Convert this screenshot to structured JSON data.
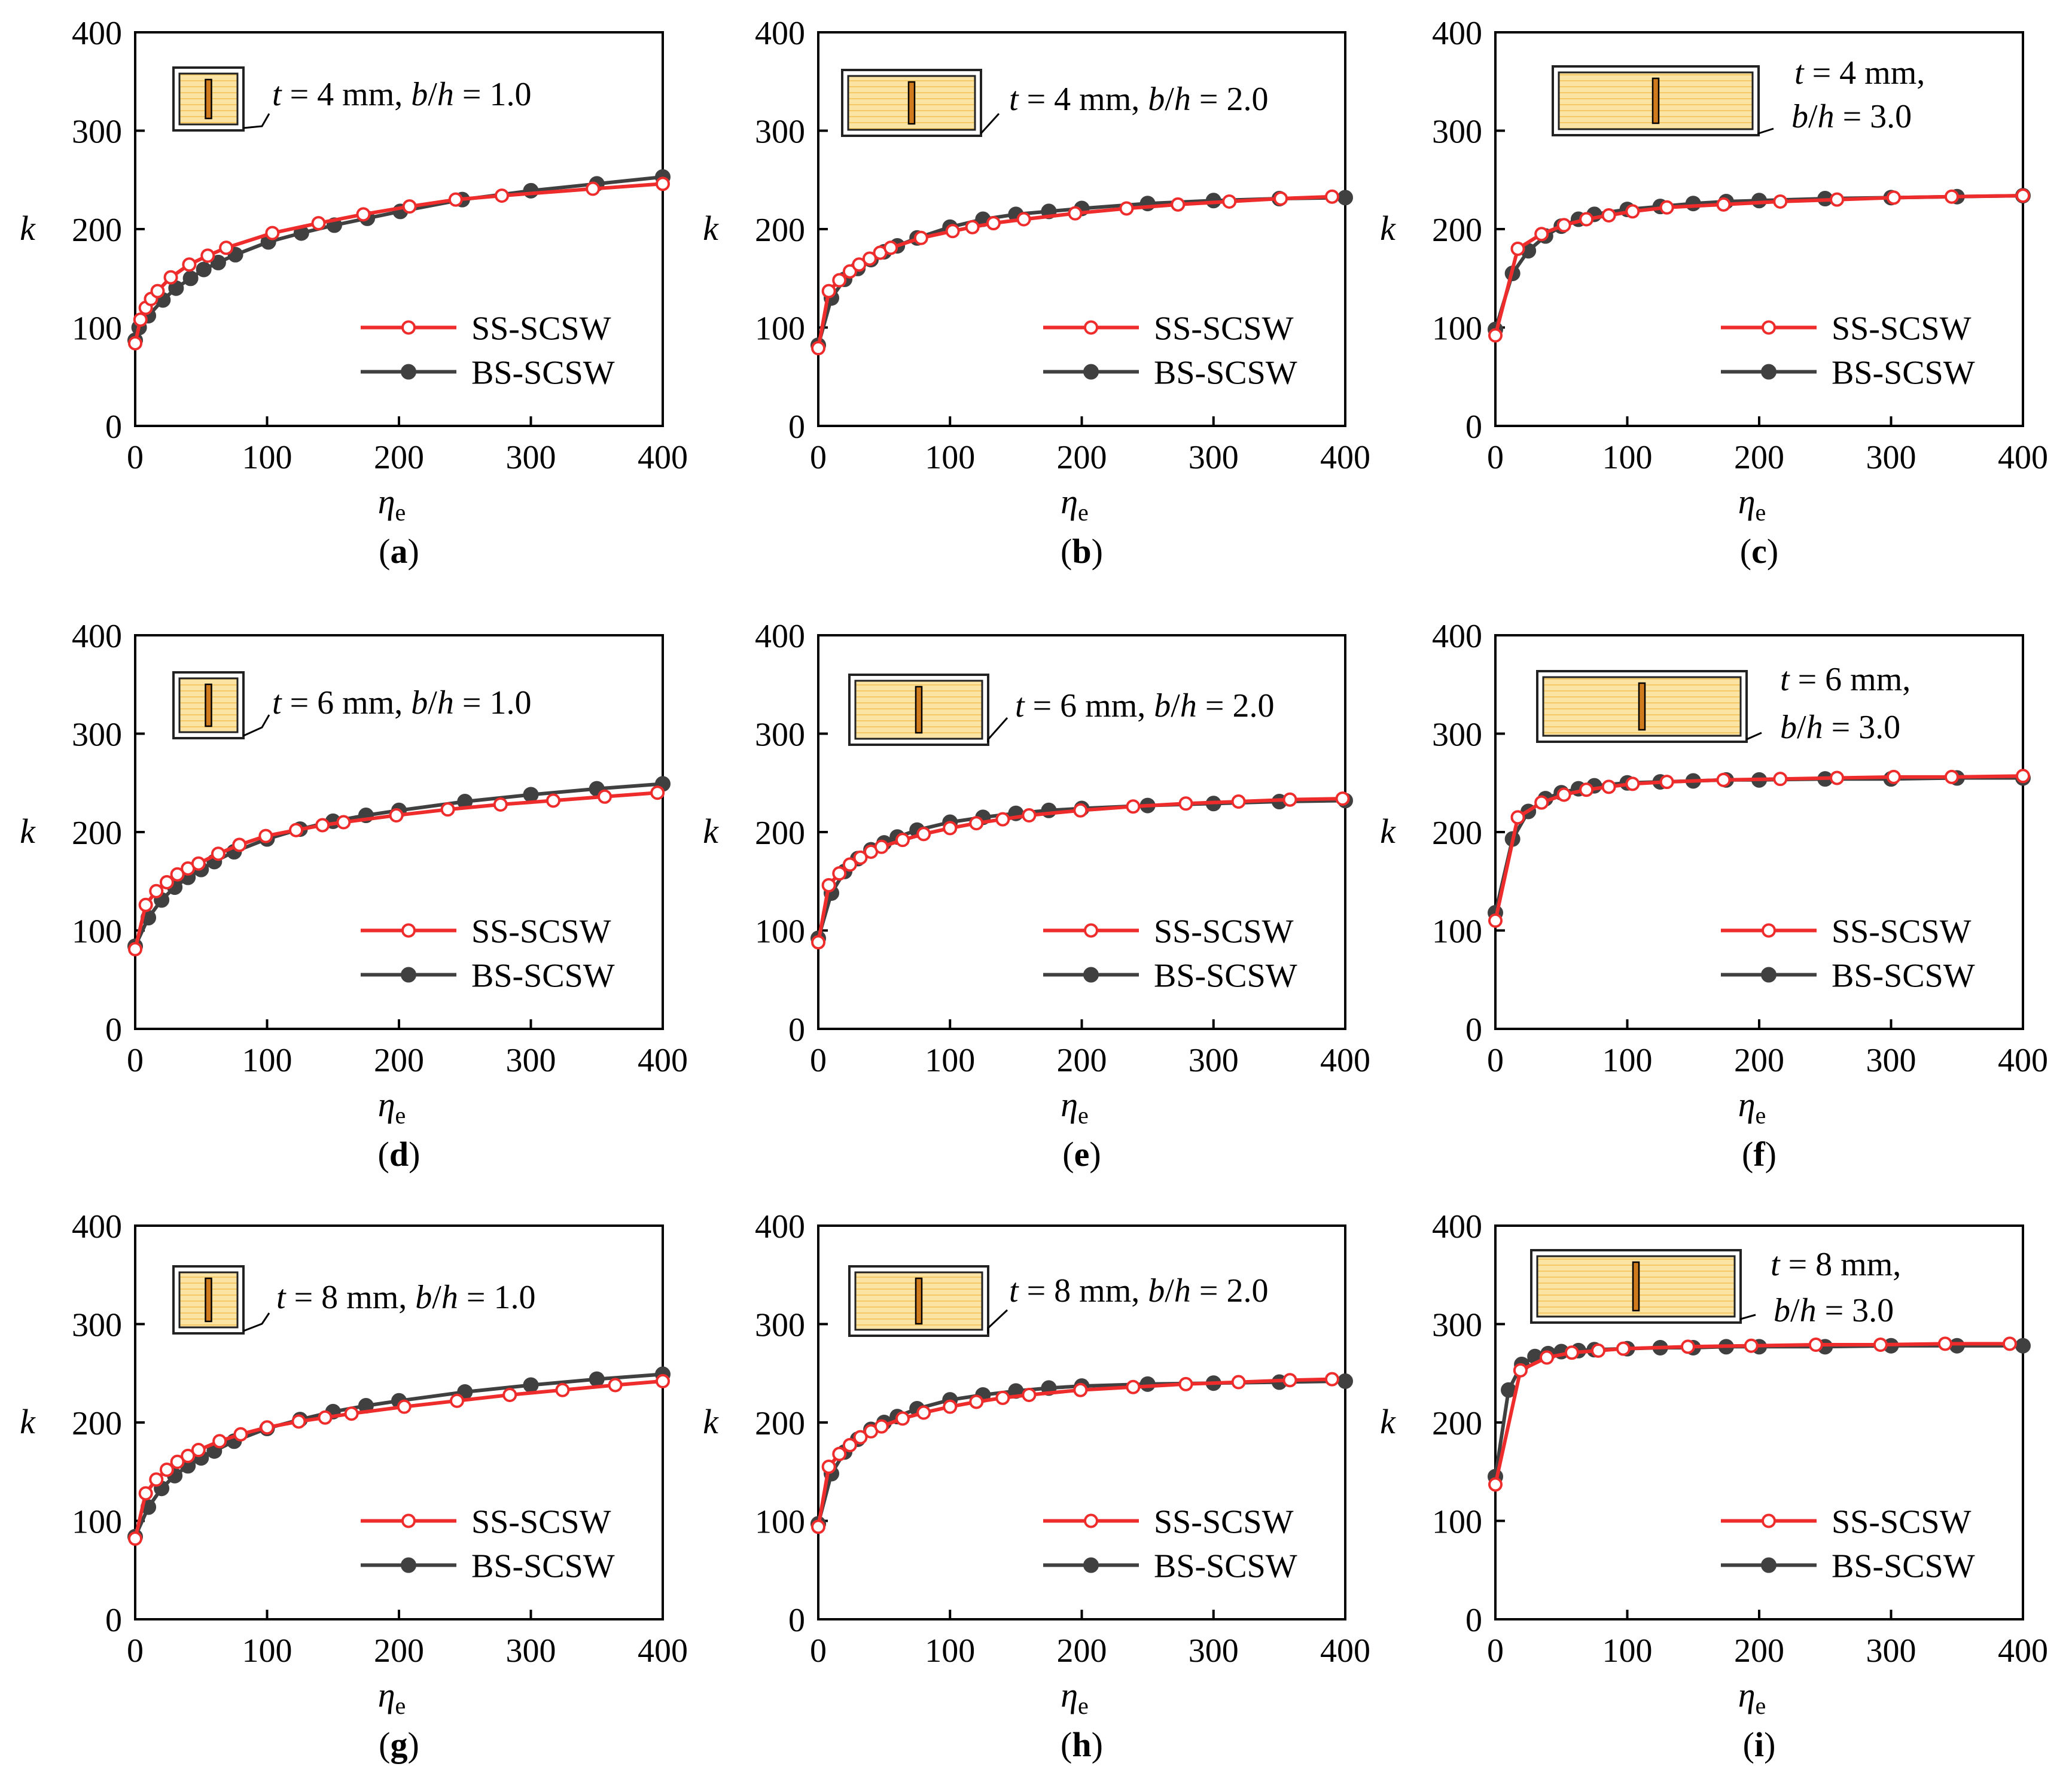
{
  "colors": {
    "ss": "#ee2c2c",
    "bs": "#404040",
    "panel_fill": "#fbe3a3",
    "panel_stripe": "#f3c865",
    "stiffener": "#cf7a1d",
    "frame": "#222222"
  },
  "axis_labels": {
    "x_main": "η",
    "x_sub": "e",
    "y": "k"
  },
  "legend_labels": {
    "ss": "SS-SCSW",
    "bs": "BS-SCSW"
  },
  "chart_data": [
    {
      "type": "line",
      "id": "a",
      "caption": "a",
      "annotation": [
        "t = 4 mm, b/h = 1.0"
      ],
      "xlim": [
        0,
        400
      ],
      "ylim": [
        0,
        400
      ],
      "xticks": [
        0,
        100,
        200,
        300,
        400
      ],
      "yticks": [
        0,
        100,
        200,
        300,
        400
      ],
      "legend_position": "lower-right",
      "series": [
        {
          "name": "SS-SCSW",
          "x": [
            0,
            4,
            8,
            12,
            17,
            27,
            41,
            55,
            69,
            104,
            139,
            173,
            208,
            243,
            278,
            347,
            400
          ],
          "y": [
            84,
            108,
            120,
            129,
            137,
            151,
            164,
            173,
            181,
            196,
            206,
            215,
            223,
            230,
            234,
            241,
            246
          ]
        },
        {
          "name": "BS-SCSW",
          "x": [
            0,
            3,
            10,
            21,
            31,
            42,
            52,
            63,
            76,
            101,
            126,
            151,
            176,
            201,
            248,
            300,
            350,
            400
          ],
          "y": [
            87,
            100,
            112,
            128,
            140,
            150,
            159,
            166,
            174,
            187,
            196,
            204,
            211,
            218,
            230,
            239,
            246,
            253
          ]
        }
      ]
    },
    {
      "type": "line",
      "id": "b",
      "caption": "b",
      "annotation": [
        "t = 4 mm, b/h = 2.0"
      ],
      "xlim": [
        0,
        400
      ],
      "ylim": [
        0,
        400
      ],
      "xticks": [
        0,
        100,
        200,
        300,
        400
      ],
      "yticks": [
        0,
        100,
        200,
        300,
        400
      ],
      "legend_position": "lower-right",
      "series": [
        {
          "name": "SS-SCSW",
          "x": [
            0,
            8,
            16,
            24,
            31,
            39,
            47,
            55,
            78,
            102,
            117,
            133,
            156,
            195,
            234,
            273,
            312,
            351,
            390
          ],
          "y": [
            79,
            137,
            148,
            157,
            164,
            170,
            176,
            181,
            191,
            198,
            202,
            206,
            210,
            216,
            221,
            225,
            228,
            231,
            233
          ]
        },
        {
          "name": "BS-SCSW",
          "x": [
            0,
            10,
            20,
            30,
            40,
            50,
            60,
            75,
            100,
            125,
            150,
            175,
            200,
            250,
            300,
            350,
            400
          ],
          "y": [
            82,
            130,
            149,
            160,
            169,
            177,
            183,
            191,
            202,
            210,
            215,
            218,
            221,
            226,
            229,
            231,
            232
          ]
        }
      ]
    },
    {
      "type": "line",
      "id": "c",
      "caption": "c",
      "annotation": [
        "t = 4 mm,",
        "b/h = 3.0"
      ],
      "xlim": [
        0,
        400
      ],
      "ylim": [
        0,
        400
      ],
      "xticks": [
        0,
        100,
        200,
        300,
        400
      ],
      "yticks": [
        0,
        100,
        200,
        300,
        400
      ],
      "legend_position": "lower-right",
      "series": [
        {
          "name": "SS-SCSW",
          "x": [
            0,
            17,
            35,
            52,
            69,
            86,
            104,
            130,
            173,
            216,
            259,
            302,
            346,
            400
          ],
          "y": [
            92,
            180,
            195,
            204,
            210,
            214,
            218,
            222,
            225,
            228,
            230,
            232,
            233,
            234
          ]
        },
        {
          "name": "BS-SCSW",
          "x": [
            0,
            13,
            25,
            38,
            50,
            63,
            75,
            100,
            125,
            150,
            175,
            200,
            250,
            300,
            350,
            400
          ],
          "y": [
            98,
            155,
            178,
            193,
            203,
            210,
            215,
            220,
            223,
            226,
            228,
            229,
            231,
            232,
            233,
            234
          ]
        }
      ]
    },
    {
      "type": "line",
      "id": "d",
      "caption": "d",
      "annotation": [
        "t = 6 mm, b/h = 1.0"
      ],
      "xlim": [
        0,
        400
      ],
      "ylim": [
        0,
        400
      ],
      "xticks": [
        0,
        100,
        200,
        300,
        400
      ],
      "yticks": [
        0,
        100,
        200,
        300,
        400
      ],
      "legend_position": "lower-right",
      "series": [
        {
          "name": "SS-SCSW",
          "x": [
            0,
            8,
            16,
            24,
            32,
            40,
            48,
            63,
            79,
            99,
            122,
            142,
            158,
            198,
            237,
            277,
            317,
            356,
            396
          ],
          "y": [
            81,
            126,
            140,
            149,
            157,
            163,
            168,
            178,
            187,
            196,
            202,
            207,
            210,
            217,
            223,
            228,
            232,
            236,
            240
          ]
        },
        {
          "name": "BS-SCSW",
          "x": [
            0,
            10,
            20,
            30,
            40,
            50,
            60,
            75,
            100,
            125,
            150,
            175,
            200,
            250,
            300,
            350,
            400
          ],
          "y": [
            84,
            113,
            131,
            144,
            154,
            162,
            170,
            180,
            193,
            203,
            211,
            217,
            222,
            231,
            238,
            244,
            249
          ]
        }
      ]
    },
    {
      "type": "line",
      "id": "e",
      "caption": "e",
      "annotation": [
        "t = 6 mm, b/h = 2.0"
      ],
      "xlim": [
        0,
        400
      ],
      "ylim": [
        0,
        400
      ],
      "xticks": [
        0,
        100,
        200,
        300,
        400
      ],
      "yticks": [
        0,
        100,
        200,
        300,
        400
      ],
      "legend_position": "lower-right",
      "series": [
        {
          "name": "SS-SCSW",
          "x": [
            0,
            8,
            16,
            24,
            32,
            40,
            48,
            64,
            80,
            100,
            120,
            140,
            160,
            199,
            239,
            279,
            319,
            358,
            398
          ],
          "y": [
            88,
            146,
            158,
            167,
            174,
            180,
            185,
            192,
            198,
            204,
            209,
            213,
            217,
            222,
            226,
            229,
            231,
            233,
            234
          ]
        },
        {
          "name": "BS-SCSW",
          "x": [
            0,
            10,
            20,
            30,
            40,
            50,
            60,
            75,
            100,
            125,
            150,
            175,
            200,
            250,
            300,
            350,
            400
          ],
          "y": [
            92,
            138,
            160,
            173,
            182,
            189,
            195,
            202,
            210,
            215,
            219,
            222,
            224,
            227,
            229,
            231,
            232
          ]
        }
      ]
    },
    {
      "type": "line",
      "id": "f",
      "caption": "f",
      "annotation": [
        "t = 6 mm,",
        "b/h = 3.0"
      ],
      "xlim": [
        0,
        400
      ],
      "ylim": [
        0,
        400
      ],
      "xticks": [
        0,
        100,
        200,
        300,
        400
      ],
      "yticks": [
        0,
        100,
        200,
        300,
        400
      ],
      "legend_position": "lower-right",
      "series": [
        {
          "name": "SS-SCSW",
          "x": [
            0,
            17,
            35,
            52,
            69,
            86,
            104,
            130,
            173,
            216,
            259,
            302,
            346,
            400
          ],
          "y": [
            110,
            215,
            230,
            238,
            243,
            246,
            249,
            251,
            253,
            254,
            255,
            256,
            256,
            257
          ]
        },
        {
          "name": "BS-SCSW",
          "x": [
            0,
            13,
            25,
            38,
            50,
            63,
            75,
            100,
            125,
            150,
            175,
            200,
            250,
            300,
            350,
            400
          ],
          "y": [
            118,
            193,
            221,
            234,
            240,
            244,
            247,
            250,
            251,
            252,
            253,
            253,
            254,
            254,
            255,
            255
          ]
        }
      ]
    },
    {
      "type": "line",
      "id": "g",
      "caption": "g",
      "annotation": [
        "t = 8 mm, b/h = 1.0"
      ],
      "xlim": [
        0,
        400
      ],
      "ylim": [
        0,
        400
      ],
      "xticks": [
        0,
        100,
        200,
        300,
        400
      ],
      "yticks": [
        0,
        100,
        200,
        300,
        400
      ],
      "legend_position": "lower-right",
      "series": [
        {
          "name": "SS-SCSW",
          "x": [
            0,
            8,
            16,
            24,
            32,
            40,
            48,
            64,
            80,
            100,
            124,
            144,
            164,
            204,
            244,
            284,
            324,
            364,
            400
          ],
          "y": [
            82,
            128,
            142,
            152,
            160,
            166,
            172,
            181,
            188,
            195,
            201,
            205,
            209,
            216,
            222,
            228,
            233,
            238,
            242
          ]
        },
        {
          "name": "BS-SCSW",
          "x": [
            0,
            10,
            20,
            30,
            40,
            50,
            60,
            75,
            100,
            125,
            150,
            175,
            200,
            250,
            300,
            350,
            400
          ],
          "y": [
            84,
            114,
            133,
            146,
            156,
            164,
            171,
            181,
            194,
            203,
            211,
            217,
            222,
            231,
            238,
            244,
            249
          ]
        }
      ]
    },
    {
      "type": "line",
      "id": "h",
      "caption": "h",
      "annotation": [
        "t = 8 mm, b/h = 2.0"
      ],
      "xlim": [
        0,
        400
      ],
      "ylim": [
        0,
        400
      ],
      "xticks": [
        0,
        100,
        200,
        300,
        400
      ],
      "yticks": [
        0,
        100,
        200,
        300,
        400
      ],
      "legend_position": "lower-right",
      "series": [
        {
          "name": "SS-SCSW",
          "x": [
            0,
            8,
            16,
            24,
            32,
            40,
            48,
            64,
            80,
            100,
            120,
            140,
            160,
            199,
            239,
            279,
            319,
            358,
            390
          ],
          "y": [
            94,
            155,
            168,
            177,
            185,
            191,
            196,
            204,
            210,
            216,
            221,
            225,
            228,
            233,
            236,
            239,
            241,
            243,
            244
          ]
        },
        {
          "name": "BS-SCSW",
          "x": [
            0,
            10,
            20,
            30,
            40,
            50,
            60,
            75,
            100,
            125,
            150,
            175,
            200,
            250,
            300,
            350,
            400
          ],
          "y": [
            97,
            148,
            170,
            183,
            193,
            200,
            206,
            214,
            223,
            228,
            232,
            235,
            237,
            239,
            240,
            241,
            242
          ]
        }
      ]
    },
    {
      "type": "line",
      "id": "i",
      "caption": "i",
      "annotation": [
        "t = 8 mm,",
        "b/h = 3.0"
      ],
      "xlim": [
        0,
        400
      ],
      "ylim": [
        0,
        400
      ],
      "xticks": [
        0,
        100,
        200,
        300,
        400
      ],
      "yticks": [
        0,
        100,
        200,
        300,
        400
      ],
      "legend_position": "lower-right",
      "series": [
        {
          "name": "SS-SCSW",
          "x": [
            0,
            19,
            39,
            58,
            78,
            97,
            146,
            194,
            243,
            292,
            341,
            390
          ],
          "y": [
            137,
            253,
            266,
            271,
            273,
            275,
            277,
            278,
            279,
            279,
            280,
            280
          ]
        },
        {
          "name": "BS-SCSW",
          "x": [
            0,
            10,
            20,
            30,
            40,
            50,
            63,
            75,
            100,
            125,
            150,
            175,
            200,
            250,
            300,
            350,
            400
          ],
          "y": [
            145,
            233,
            259,
            267,
            270,
            272,
            273,
            274,
            275,
            276,
            276,
            277,
            277,
            277,
            278,
            278,
            278
          ]
        }
      ]
    }
  ]
}
